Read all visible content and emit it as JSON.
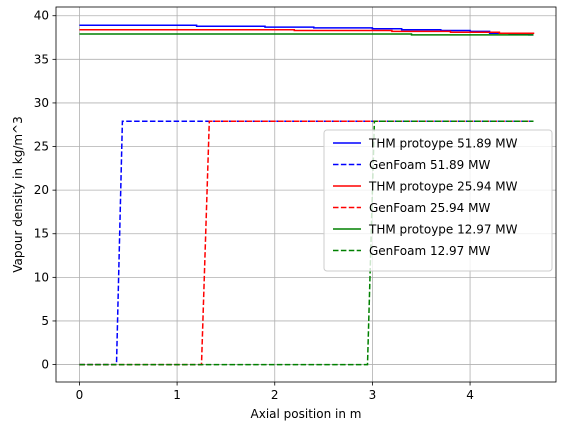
{
  "chart_data": {
    "type": "line",
    "xlabel": "Axial position in m",
    "ylabel": "Vapour density in kg/m^3",
    "xlim": [
      -0.24,
      4.88
    ],
    "ylim": [
      -2,
      41
    ],
    "xticks": [
      0,
      1,
      2,
      3,
      4
    ],
    "xtick_labels": [
      "0",
      "1",
      "2",
      "3",
      "4"
    ],
    "yticks": [
      0,
      5,
      10,
      15,
      20,
      25,
      30,
      35,
      40
    ],
    "ytick_labels": [
      "0",
      "5",
      "10",
      "15",
      "20",
      "25",
      "30",
      "35",
      "40"
    ],
    "grid": true,
    "legend_position": "center-right",
    "series": [
      {
        "name": "THM protoype 51.89 MW",
        "color": "#0000ff",
        "style": "solid",
        "step": true,
        "x": [
          0.0,
          0.6,
          1.2,
          1.9,
          2.4,
          3.0,
          3.3,
          3.7,
          4.0,
          4.2,
          4.4,
          4.6,
          4.65
        ],
        "y": [
          38.9,
          38.9,
          38.8,
          38.7,
          38.6,
          38.5,
          38.4,
          38.3,
          38.2,
          38.0,
          37.9,
          37.8,
          37.8
        ]
      },
      {
        "name": "GenFoam 51.89 MW",
        "color": "#0000ff",
        "style": "dashed",
        "step": false,
        "x": [
          0.0,
          0.38,
          0.44,
          4.65
        ],
        "y": [
          0.0,
          0.0,
          27.9,
          27.9
        ]
      },
      {
        "name": "THM protoype 25.94 MW",
        "color": "#ff0000",
        "style": "solid",
        "step": true,
        "x": [
          0.0,
          1.1,
          2.2,
          3.2,
          3.8,
          4.3,
          4.65
        ],
        "y": [
          38.4,
          38.4,
          38.3,
          38.2,
          38.1,
          38.0,
          37.9
        ]
      },
      {
        "name": "GenFoam 25.94 MW",
        "color": "#ff0000",
        "style": "dashed",
        "step": false,
        "x": [
          0.0,
          1.25,
          1.33,
          4.65
        ],
        "y": [
          0.0,
          0.0,
          27.9,
          27.9
        ]
      },
      {
        "name": "THM protoype 12.97 MW",
        "color": "#008000",
        "style": "solid",
        "step": true,
        "x": [
          0.0,
          1.5,
          2.6,
          3.4,
          4.0,
          4.65
        ],
        "y": [
          37.9,
          37.9,
          37.9,
          37.8,
          37.8,
          37.8
        ]
      },
      {
        "name": "GenFoam 12.97 MW",
        "color": "#008000",
        "style": "dashed",
        "step": false,
        "x": [
          0.0,
          2.95,
          3.02,
          4.65
        ],
        "y": [
          0.0,
          0.0,
          27.9,
          27.9
        ]
      }
    ]
  }
}
